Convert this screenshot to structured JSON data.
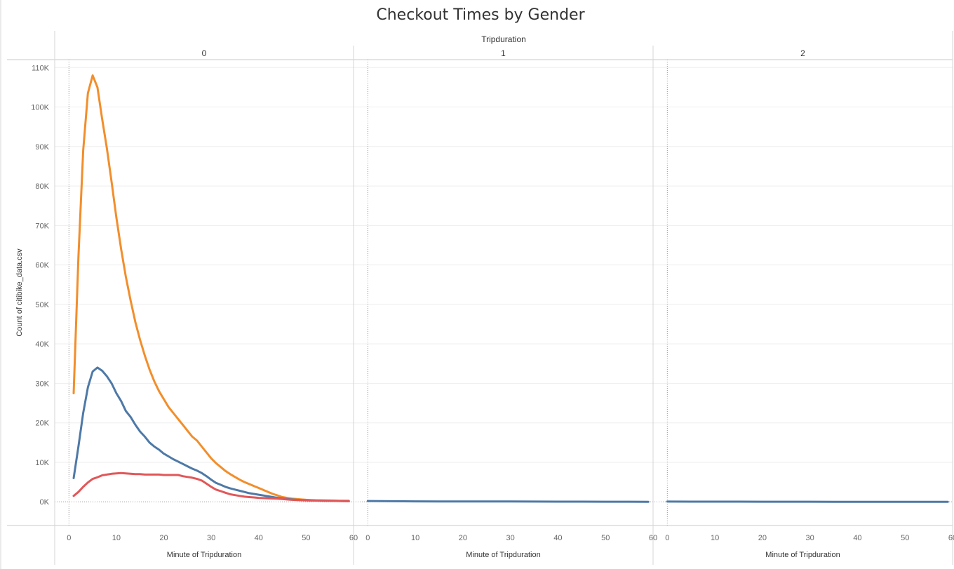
{
  "chart_data": {
    "type": "line",
    "title": "Checkout Times by Gender",
    "column_header": "Tripduration",
    "panels": [
      "0",
      "1",
      "2"
    ],
    "xlabel": "Minute of Tripduration",
    "ylabel": "Count of citibike_data.csv",
    "xlim": [
      -3,
      60
    ],
    "ylim": [
      -6000,
      112000
    ],
    "x_ticks": [
      0,
      10,
      20,
      30,
      40,
      50,
      60
    ],
    "y_ticks": [
      0,
      10000,
      20000,
      30000,
      40000,
      50000,
      60000,
      70000,
      80000,
      90000,
      100000,
      110000
    ],
    "y_tick_labels": [
      "0K",
      "10K",
      "20K",
      "30K",
      "40K",
      "50K",
      "60K",
      "70K",
      "80K",
      "90K",
      "100K",
      "110K"
    ],
    "grid": true,
    "colors": {
      "orange": "#f28e2b",
      "blue": "#4e79a7",
      "red": "#e15759"
    },
    "series": [
      {
        "color": "#f28e2b",
        "panel": "0",
        "x": [
          1,
          2,
          3,
          4,
          5,
          6,
          7,
          8,
          9,
          10,
          11,
          12,
          13,
          14,
          15,
          16,
          17,
          18,
          19,
          20,
          21,
          22,
          23,
          24,
          25,
          26,
          27,
          28,
          29,
          30,
          31,
          32,
          33,
          34,
          35,
          36,
          37,
          38,
          39,
          40,
          41,
          42,
          43,
          44,
          45,
          46,
          47,
          48,
          49,
          50,
          51,
          52,
          53,
          54,
          55,
          56,
          57,
          58,
          59
        ],
        "values": [
          27500,
          62000,
          89000,
          103500,
          108000,
          105000,
          97000,
          89500,
          81000,
          72000,
          64000,
          57000,
          51000,
          45500,
          41000,
          37000,
          33500,
          30500,
          28000,
          26000,
          24000,
          22500,
          21000,
          19500,
          18000,
          16500,
          15500,
          14000,
          12500,
          11000,
          9800,
          8800,
          7800,
          7000,
          6300,
          5600,
          5000,
          4500,
          4000,
          3500,
          3000,
          2500,
          2000,
          1600,
          1200,
          1000,
          800,
          700,
          600,
          500,
          450,
          400,
          380,
          350,
          320,
          300,
          280,
          260,
          250
        ]
      },
      {
        "color": "#4e79a7",
        "panel": "0",
        "x": [
          1,
          2,
          3,
          4,
          5,
          6,
          7,
          8,
          9,
          10,
          11,
          12,
          13,
          14,
          15,
          16,
          17,
          18,
          19,
          20,
          21,
          22,
          23,
          24,
          25,
          26,
          27,
          28,
          29,
          30,
          31,
          32,
          33,
          34,
          35,
          36,
          37,
          38,
          39,
          40,
          41,
          42,
          43,
          44,
          45,
          46,
          47,
          48,
          49,
          50,
          51,
          52,
          53,
          54,
          55,
          56,
          57,
          58,
          59
        ],
        "values": [
          6000,
          14000,
          22500,
          29000,
          33000,
          34000,
          33200,
          31800,
          30000,
          27500,
          25500,
          23000,
          21500,
          19500,
          17800,
          16500,
          15000,
          14000,
          13200,
          12200,
          11500,
          10800,
          10200,
          9600,
          9000,
          8400,
          7900,
          7300,
          6500,
          5600,
          4800,
          4300,
          3800,
          3400,
          3100,
          2800,
          2500,
          2200,
          2000,
          1800,
          1600,
          1400,
          1200,
          1000,
          850,
          700,
          600,
          500,
          450,
          400,
          350,
          320,
          300,
          280,
          260,
          240,
          220,
          200,
          190
        ]
      },
      {
        "color": "#e15759",
        "panel": "0",
        "x": [
          1,
          2,
          3,
          4,
          5,
          6,
          7,
          8,
          9,
          10,
          11,
          12,
          13,
          14,
          15,
          16,
          17,
          18,
          19,
          20,
          21,
          22,
          23,
          24,
          25,
          26,
          27,
          28,
          29,
          30,
          31,
          32,
          33,
          34,
          35,
          36,
          37,
          38,
          39,
          40,
          41,
          42,
          43,
          44,
          45,
          46,
          47,
          48,
          49,
          50,
          51,
          52,
          53,
          54,
          55,
          56,
          57,
          58,
          59
        ],
        "values": [
          1500,
          2500,
          3800,
          4900,
          5800,
          6200,
          6700,
          6900,
          7100,
          7200,
          7300,
          7200,
          7100,
          7000,
          7000,
          6900,
          6900,
          6900,
          6900,
          6800,
          6800,
          6800,
          6800,
          6500,
          6300,
          6100,
          5800,
          5400,
          4600,
          3800,
          3100,
          2700,
          2300,
          1900,
          1700,
          1500,
          1300,
          1200,
          1100,
          1000,
          950,
          900,
          850,
          800,
          700,
          600,
          500,
          450,
          400,
          350,
          320,
          300,
          280,
          260,
          240,
          220,
          200,
          190,
          180
        ]
      },
      {
        "color": "#4e79a7",
        "panel": "1",
        "x": [
          0,
          5,
          10,
          15,
          20,
          25,
          30,
          35,
          40,
          45,
          50,
          55,
          59
        ],
        "values": [
          200,
          150,
          120,
          100,
          90,
          80,
          70,
          60,
          50,
          40,
          30,
          20,
          10
        ]
      },
      {
        "color": "#4e79a7",
        "panel": "2",
        "x": [
          0,
          5,
          10,
          15,
          20,
          25,
          30,
          35,
          40,
          45,
          50,
          55,
          59
        ],
        "values": [
          60,
          50,
          40,
          35,
          30,
          25,
          20,
          15,
          12,
          10,
          8,
          6,
          5
        ]
      }
    ]
  }
}
